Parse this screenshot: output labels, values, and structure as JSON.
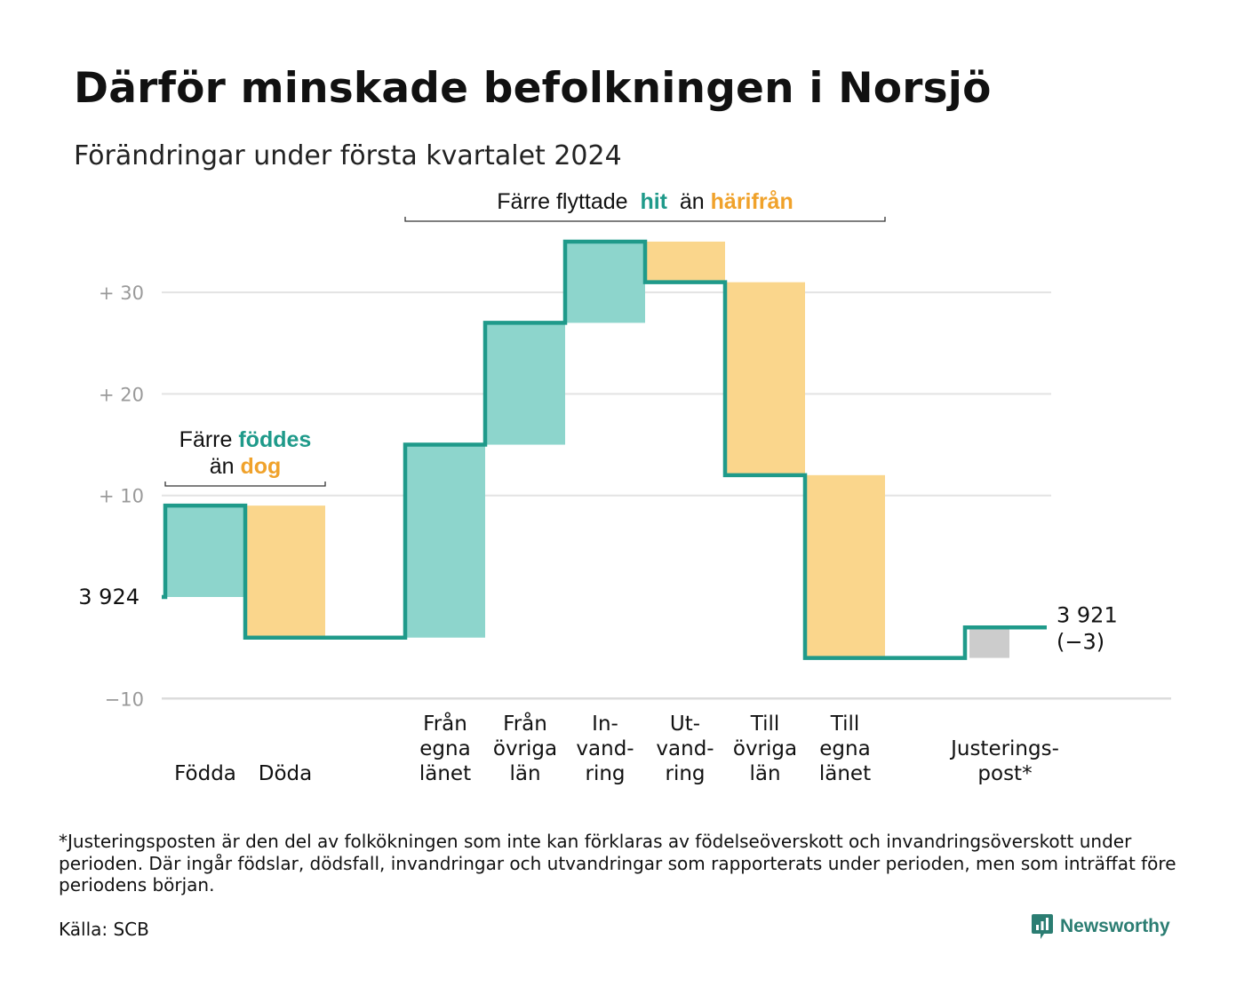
{
  "title": "Därför minskade befolkningen i Norsjö",
  "subtitle": "Förändringar under första kvartalet 2024",
  "footnote": "*Justeringsposten är den del av folkökningen som inte kan förklaras av födelseöverskott och invandringsöverskott under perioden. Där ingår födslar, dödsfall, invandringar och utvandringar som rapporterats under perioden, men som inträffat före periodens början.",
  "source": "Källa: SCB",
  "brand": "Newsworthy",
  "colors": {
    "increase": "#8dd5cc",
    "decrease": "#fad68c",
    "adjustment": "#cccccc",
    "line": "#1f9a8a",
    "grid": "#e3e3e3",
    "highlight_in": "#1f9a8a",
    "highlight_out": "#f0a22b"
  },
  "chart_data": {
    "type": "waterfall",
    "start": {
      "label": "3  924",
      "value": 3924
    },
    "end": {
      "label": "3 921",
      "change_label": "(−3)",
      "value": 3921
    },
    "ylim": [
      -10,
      35
    ],
    "y_ticks": [
      {
        "value": 30,
        "label": "+  30"
      },
      {
        "value": 20,
        "label": "+  20"
      },
      {
        "value": 10,
        "label": "+  10"
      },
      {
        "value": -10,
        "label": "−10"
      }
    ],
    "grid": true,
    "steps": [
      {
        "lines": [
          "Födda"
        ],
        "value": 9,
        "kind": "increase"
      },
      {
        "lines": [
          "Döda"
        ],
        "value": -13,
        "kind": "decrease"
      },
      {
        "lines": [
          ""
        ],
        "value": 0,
        "kind": "gap"
      },
      {
        "lines": [
          "Från",
          "egna",
          "länet"
        ],
        "value": 19,
        "kind": "increase"
      },
      {
        "lines": [
          "Från",
          "övriga",
          "län"
        ],
        "value": 12,
        "kind": "increase"
      },
      {
        "lines": [
          "In-",
          "vand-",
          "ring"
        ],
        "value": 8,
        "kind": "increase"
      },
      {
        "lines": [
          "Ut-",
          "vand-",
          "ring"
        ],
        "value": -4,
        "kind": "decrease"
      },
      {
        "lines": [
          "Till",
          "övriga",
          "län"
        ],
        "value": -19,
        "kind": "decrease"
      },
      {
        "lines": [
          "Till",
          "egna",
          "länet"
        ],
        "value": -18,
        "kind": "decrease"
      },
      {
        "lines": [
          ""
        ],
        "value": 0,
        "kind": "gap"
      },
      {
        "lines": [
          "Justerings-",
          "post*"
        ],
        "value": 3,
        "kind": "adjustment"
      }
    ],
    "annotations": [
      {
        "lines": [
          [
            {
              "text": "Färre ",
              "hl": ""
            },
            {
              "text": "föddes",
              "hl": "in"
            }
          ],
          [
            {
              "text": "än ",
              "hl": ""
            },
            {
              "text": "dog",
              "hl": "out"
            }
          ]
        ],
        "from_step": 0,
        "to_step": 1
      },
      {
        "lines": [
          [
            {
              "text": "Färre flyttade  ",
              "hl": ""
            },
            {
              "text": "hit",
              "hl": "in"
            },
            {
              "text": "  än ",
              "hl": ""
            },
            {
              "text": "härifrån",
              "hl": "out"
            }
          ]
        ],
        "from_step": 3,
        "to_step": 8
      }
    ]
  }
}
